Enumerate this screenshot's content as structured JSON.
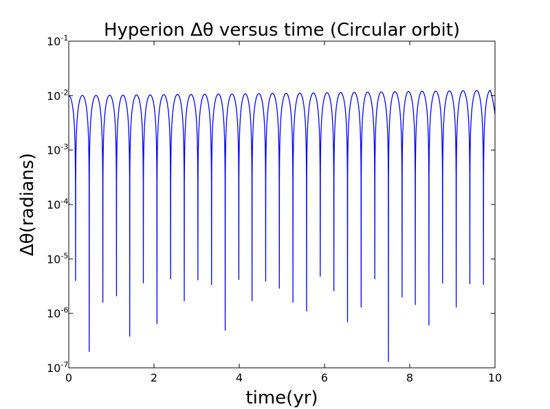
{
  "chart_data": {
    "type": "line",
    "title": "Hyperion Δθ versus time (Circular orbit)",
    "xlabel": "time(yr)",
    "ylabel": "Δθ(radians)",
    "xlim": [
      0,
      10
    ],
    "ylim": [
      1e-07,
      0.1
    ],
    "yscale": "log",
    "grid": false,
    "legend": "none",
    "color": "#0000ff",
    "x_ticks": [
      {
        "value": 0,
        "label": "0"
      },
      {
        "value": 2,
        "label": "2"
      },
      {
        "value": 4,
        "label": "4"
      },
      {
        "value": 6,
        "label": "6"
      },
      {
        "value": 8,
        "label": "8"
      },
      {
        "value": 10,
        "label": "10"
      }
    ],
    "y_ticks": [
      {
        "value": 1e-07,
        "base": "10",
        "exp": "-7"
      },
      {
        "value": 1e-06,
        "base": "10",
        "exp": "-6"
      },
      {
        "value": 1e-05,
        "base": "10",
        "exp": "-5"
      },
      {
        "value": 0.0001,
        "base": "10",
        "exp": "-4"
      },
      {
        "value": 0.001,
        "base": "10",
        "exp": "-3"
      },
      {
        "value": 0.01,
        "base": "10",
        "exp": "-2"
      },
      {
        "value": 0.1,
        "base": "10",
        "exp": "-1"
      }
    ],
    "series": [
      {
        "peaks": [
          [
            0.0,
            0.01
          ],
          [
            0.32,
            0.0101
          ],
          [
            0.64,
            0.0101
          ],
          [
            0.96,
            0.0102
          ],
          [
            1.27,
            0.0102
          ],
          [
            1.59,
            0.0103
          ],
          [
            1.91,
            0.0103
          ],
          [
            2.23,
            0.0104
          ],
          [
            2.55,
            0.0105
          ],
          [
            2.87,
            0.0105
          ],
          [
            3.19,
            0.0106
          ],
          [
            3.51,
            0.0107
          ],
          [
            3.83,
            0.0107
          ],
          [
            4.14,
            0.0108
          ],
          [
            4.46,
            0.0109
          ],
          [
            4.78,
            0.011
          ],
          [
            5.1,
            0.011
          ],
          [
            5.42,
            0.0111
          ],
          [
            5.74,
            0.0112
          ],
          [
            6.06,
            0.0113
          ],
          [
            6.38,
            0.0114
          ],
          [
            6.7,
            0.0115
          ],
          [
            7.01,
            0.0116
          ],
          [
            7.33,
            0.0117
          ],
          [
            7.65,
            0.0118
          ],
          [
            7.97,
            0.0119
          ],
          [
            8.29,
            0.012
          ],
          [
            8.61,
            0.0121
          ],
          [
            8.93,
            0.0122
          ],
          [
            9.25,
            0.0123
          ],
          [
            9.57,
            0.0124
          ],
          [
            9.89,
            0.0125
          ]
        ],
        "minima": [
          [
            0.16,
            4e-06
          ],
          [
            0.48,
            2e-07
          ],
          [
            0.8,
            1.6e-06
          ],
          [
            1.12,
            2.1e-06
          ],
          [
            1.43,
            3.8e-07
          ],
          [
            1.75,
            3.6e-06
          ],
          [
            2.07,
            6.5e-07
          ],
          [
            2.39,
            4.3e-06
          ],
          [
            2.71,
            1.7e-06
          ],
          [
            3.03,
            4.1e-06
          ],
          [
            3.35,
            3.4e-06
          ],
          [
            3.67,
            4.9e-07
          ],
          [
            3.99,
            4.2e-06
          ],
          [
            4.3,
            1.7e-06
          ],
          [
            4.62,
            3.9e-06
          ],
          [
            4.94,
            2.9e-06
          ],
          [
            5.26,
            1.6e-06
          ],
          [
            5.58,
            1.1e-06
          ],
          [
            5.9,
            4.8e-06
          ],
          [
            6.22,
            2.6e-06
          ],
          [
            6.54,
            7e-07
          ],
          [
            6.86,
            1.3e-06
          ],
          [
            7.18,
            4.3e-06
          ],
          [
            7.5,
            1.3e-07
          ],
          [
            7.82,
            2e-06
          ],
          [
            8.13,
            1.45e-06
          ],
          [
            8.45,
            6.1e-07
          ],
          [
            8.77,
            3.6e-06
          ],
          [
            9.09,
            1.3e-06
          ],
          [
            9.41,
            3.5e-06
          ],
          [
            9.73,
            3.4e-06
          ]
        ],
        "end": [
          10.0,
          0.0045
        ]
      }
    ]
  }
}
